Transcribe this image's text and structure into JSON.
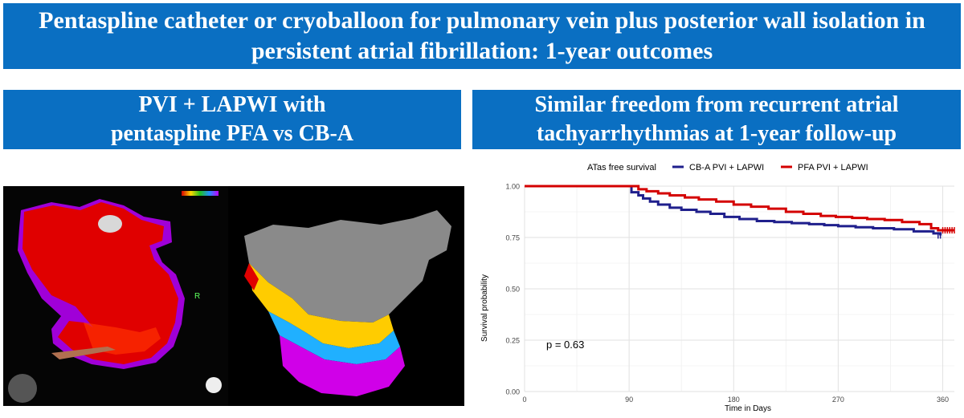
{
  "header": {
    "title_line1": "Pentaspline catheter or cryoballoon for pulmonary vein plus posterior wall isolation in",
    "title_line2": "persistent atrial fibrillation: 1-year outcomes"
  },
  "left_panel": {
    "subtitle_line1": "PVI + LAPWI with",
    "subtitle_line2": "pentaspline PFA vs CB-A",
    "map_label_r": "R"
  },
  "right_panel": {
    "subtitle_line1": "Similar freedom from recurrent atrial",
    "subtitle_line2": "tachyarrhythmias at 1-year follow-up"
  },
  "colors": {
    "banner": "#0a6fc2",
    "cb_a": "#1f1f8c",
    "pfa": "#d40000"
  },
  "chart_data": {
    "type": "line",
    "subtype": "kaplan-meier step",
    "legend_title": "ATas free survival",
    "legend_position": "top",
    "xlabel": "Time in Days",
    "ylabel": "Survival probability",
    "xlim": [
      0,
      370
    ],
    "ylim": [
      0,
      1
    ],
    "x_ticks": [
      0,
      90,
      180,
      270,
      360
    ],
    "y_ticks": [
      0.0,
      0.25,
      0.5,
      0.75,
      1.0
    ],
    "y_tick_labels": [
      "0.00",
      "0.25",
      "0.50",
      "0.75",
      "1.00"
    ],
    "annotation": "p = 0.63",
    "grid": true,
    "series": [
      {
        "name": "CB-A PVI + LAPWI",
        "color": "#1f1f8c",
        "points": [
          [
            0,
            1.0
          ],
          [
            90,
            1.0
          ],
          [
            92,
            0.97
          ],
          [
            98,
            0.955
          ],
          [
            102,
            0.94
          ],
          [
            108,
            0.925
          ],
          [
            115,
            0.91
          ],
          [
            125,
            0.895
          ],
          [
            135,
            0.885
          ],
          [
            148,
            0.875
          ],
          [
            160,
            0.865
          ],
          [
            172,
            0.85
          ],
          [
            185,
            0.84
          ],
          [
            200,
            0.83
          ],
          [
            215,
            0.825
          ],
          [
            230,
            0.82
          ],
          [
            245,
            0.815
          ],
          [
            258,
            0.81
          ],
          [
            270,
            0.805
          ],
          [
            285,
            0.8
          ],
          [
            300,
            0.795
          ],
          [
            318,
            0.79
          ],
          [
            335,
            0.78
          ],
          [
            352,
            0.77
          ],
          [
            358,
            0.76
          ]
        ]
      },
      {
        "name": "PFA PVI + LAPWI",
        "color": "#d40000",
        "points": [
          [
            0,
            1.0
          ],
          [
            95,
            1.0
          ],
          [
            98,
            0.985
          ],
          [
            105,
            0.975
          ],
          [
            115,
            0.965
          ],
          [
            125,
            0.955
          ],
          [
            138,
            0.945
          ],
          [
            150,
            0.935
          ],
          [
            165,
            0.925
          ],
          [
            180,
            0.91
          ],
          [
            195,
            0.9
          ],
          [
            210,
            0.89
          ],
          [
            225,
            0.875
          ],
          [
            240,
            0.865
          ],
          [
            255,
            0.855
          ],
          [
            268,
            0.85
          ],
          [
            282,
            0.845
          ],
          [
            295,
            0.84
          ],
          [
            310,
            0.835
          ],
          [
            325,
            0.825
          ],
          [
            340,
            0.815
          ],
          [
            350,
            0.795
          ],
          [
            356,
            0.785
          ],
          [
            370,
            0.785
          ]
        ]
      }
    ]
  }
}
